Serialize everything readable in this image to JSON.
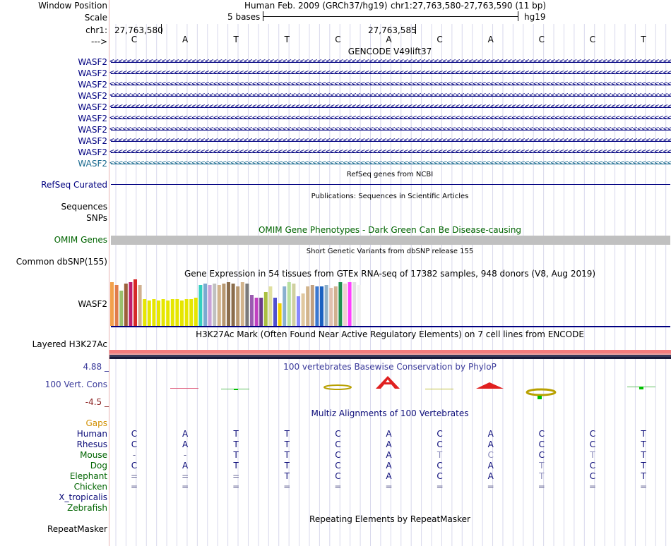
{
  "header": {
    "window_position_label": "Window Position",
    "scale_label": "Scale",
    "chr_label": "chr1:",
    "strand_label": "--->",
    "assembly": "Human Feb. 2009 (GRCh37/hg19)",
    "position": "chr1:27,763,580-27,763,590 (11 bp)",
    "scale_text": "5 bases",
    "db": "hg19",
    "pos_left": "27,763,580",
    "pos_mid": "27,763,585"
  },
  "bases": [
    "C",
    "A",
    "T",
    "T",
    "C",
    "A",
    "C",
    "A",
    "C",
    "C",
    "T"
  ],
  "tracks": {
    "gencode_title": "GENCODE V49lift37",
    "gencode_labels": [
      "WASF2",
      "WASF2",
      "WASF2",
      "WASF2",
      "WASF2",
      "WASF2",
      "WASF2",
      "WASF2",
      "WASF2",
      "WASF2"
    ],
    "refseq_title": "RefSeq genes from NCBI",
    "refseq_label": "RefSeq Curated",
    "pubs_title": "Publications: Sequences in Scientific Articles",
    "sequences_label": "Sequences",
    "snps_label": "SNPs",
    "omim_title": "OMIM Gene Phenotypes - Dark Green Can Be Disease-causing",
    "omim_label": "OMIM Genes",
    "dbsnp_title": "Short Genetic Variants from dbSNP release 155",
    "dbsnp_label": "Common dbSNP(155)",
    "gtex_title": "Gene Expression in 54 tissues from GTEx RNA-seq of 17382 samples, 948 donors (V8, Aug 2019)",
    "gtex_label": "WASF2",
    "h3k27_title": "H3K27Ac Mark (Often Found Near Active Regulatory Elements) on 7 cell lines from ENCODE",
    "h3k27_label": "Layered H3K27Ac",
    "phylop_title": "100 vertebrates Basewise Conservation by PhyloP",
    "phylop_label": "100 Vert. Cons",
    "phylop_max": "4.88 _",
    "phylop_min": "-4.5 _",
    "multiz_title": "Multiz Alignments of 100 Vertebrates",
    "gaps_label": "Gaps",
    "repeat_title": "Repeating Elements by RepeatMasker",
    "repeat_label": "RepeatMasker"
  },
  "species": [
    {
      "name": "Human",
      "color": "#0a0a78",
      "seq": [
        "C",
        "A",
        "T",
        "T",
        "C",
        "A",
        "C",
        "A",
        "C",
        "C",
        "T"
      ]
    },
    {
      "name": "Rhesus",
      "color": "#0a0a78",
      "seq": [
        "C",
        "A",
        "T",
        "T",
        "C",
        "A",
        "C",
        "A",
        "C",
        "C",
        "T"
      ]
    },
    {
      "name": "Mouse",
      "color": "#006400",
      "seq": [
        "-",
        "-",
        "T",
        "T",
        "C",
        "A",
        "T",
        "C",
        "C",
        "T",
        "T"
      ]
    },
    {
      "name": "Dog",
      "color": "#006400",
      "seq": [
        "C",
        "A",
        "T",
        "T",
        "C",
        "A",
        "C",
        "A",
        "T",
        "C",
        "T"
      ]
    },
    {
      "name": "Elephant",
      "color": "#006400",
      "seq": [
        "=",
        "=",
        "=",
        "T",
        "C",
        "A",
        "C",
        "A",
        "T",
        "C",
        "T"
      ]
    },
    {
      "name": "Chicken",
      "color": "#006400",
      "seq": [
        "=",
        "=",
        "=",
        "=",
        "=",
        "=",
        "=",
        "=",
        "=",
        "=",
        "="
      ]
    },
    {
      "name": "X_tropicalis",
      "color": "#0a0a78",
      "seq": []
    },
    {
      "name": "Zebrafish",
      "color": "#006400",
      "seq": []
    }
  ],
  "colors": {
    "label_blue": "#000080",
    "omim_green": "#006400",
    "gaps_orange": "#d18f00",
    "phylop_blue": "#3a3a9a",
    "gencode_last": "#1a6a8f",
    "grid_line": "#d8d8ec"
  },
  "gtex_values": [
    62,
    58,
    50,
    60,
    62,
    66,
    58,
    38,
    36,
    38,
    36,
    38,
    36,
    38,
    38,
    36,
    38,
    38,
    40,
    58,
    60,
    58,
    60,
    58,
    60,
    62,
    60,
    56,
    62,
    60,
    44,
    40,
    40,
    48,
    56,
    40,
    32,
    56,
    62,
    60,
    42,
    46,
    56,
    58,
    56,
    56,
    58,
    54,
    56,
    62,
    60,
    62,
    62,
    58
  ],
  "gtex_colors": [
    "#f2a14c",
    "#e07c4a",
    "#9ac16e",
    "#9c5f3a",
    "#be1d6d",
    "#d62828",
    "#d0b090",
    "#e6e600",
    "#e6e600",
    "#e6e600",
    "#e6e600",
    "#e6e600",
    "#e6e600",
    "#e6e600",
    "#e6e600",
    "#e6e600",
    "#e6e600",
    "#e6e600",
    "#e6e600",
    "#33d0c0",
    "#7aaad0",
    "#c8a0d8",
    "#c0c0c0",
    "#d2b48c",
    "#b89870",
    "#8b6d4c",
    "#8b6d4c",
    "#b89870",
    "#d2b48c",
    "#7a7a7a",
    "#9a5bb0",
    "#c040c0",
    "#6a3a8a",
    "#aac040",
    "#e0e0a0",
    "#5050d0",
    "#f0d000",
    "#8ab0d0",
    "#b8e0a0",
    "#d0d0a0",
    "#8888ff",
    "#e0c8a0",
    "#d2b48c",
    "#c0a080",
    "#3a78d0",
    "#1a60c0",
    "#90b0c8",
    "#e0c0b0",
    "#d0b090",
    "#209050",
    "#f0d0d0",
    "#ff40ff",
    "#e0e0e0",
    "#f0f0f0"
  ]
}
